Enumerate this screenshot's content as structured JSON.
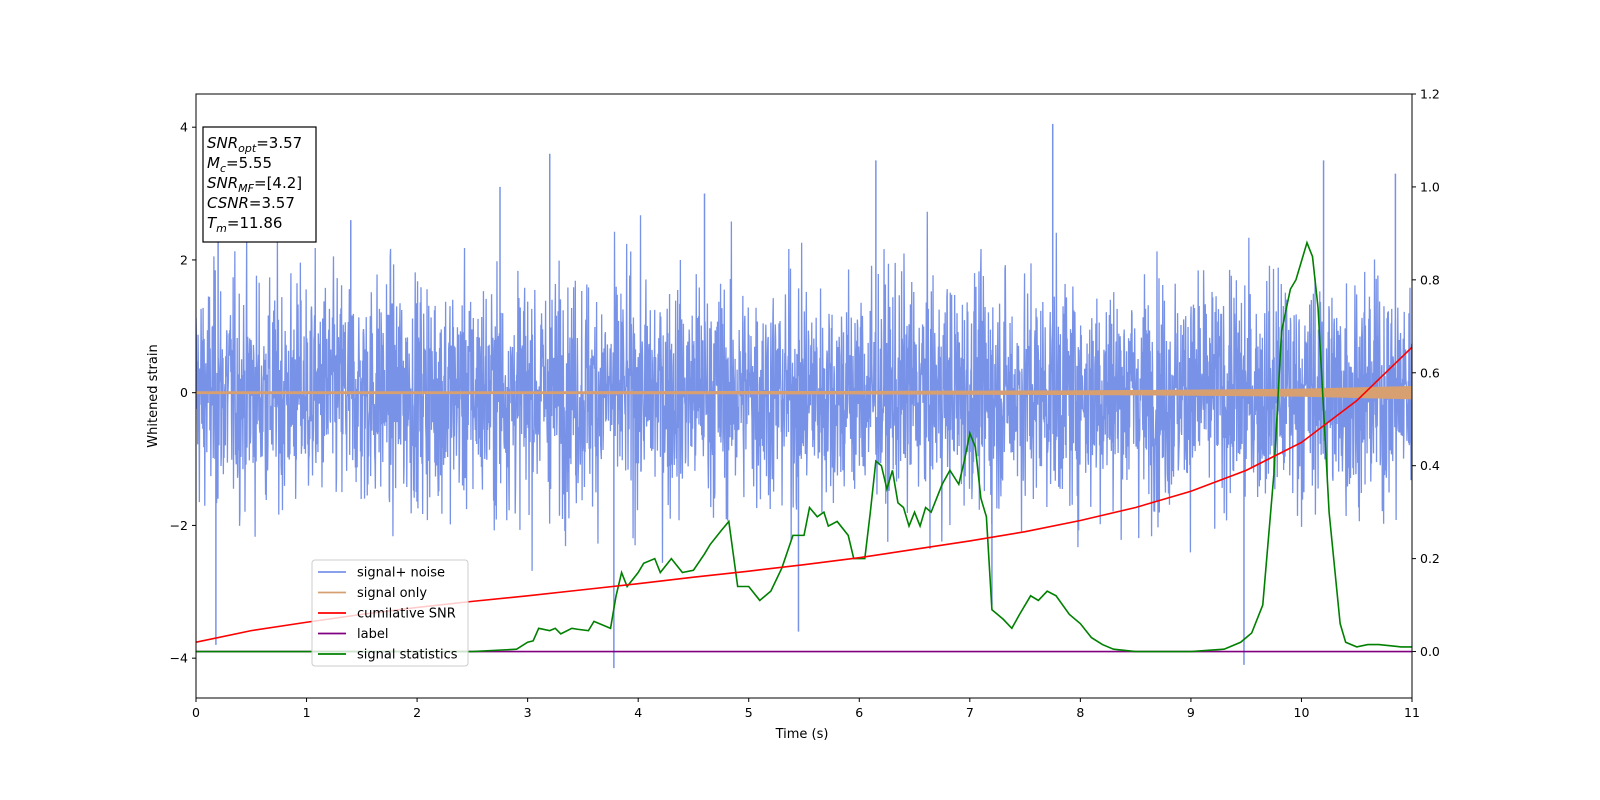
{
  "colors": {
    "noise": "#7892e8",
    "signal": "#d8a070",
    "cumulative": "#ff0000",
    "label": "#800080",
    "statistics": "#008000"
  },
  "chart_data": {
    "type": "line",
    "xlabel": "Time (s)",
    "ylabel": "Whitened strain",
    "xlim": [
      0,
      11
    ],
    "ylim": [
      -4.6,
      4.5
    ],
    "y2lim": [
      -0.1,
      1.2
    ],
    "xticks": [
      "0",
      "1",
      "2",
      "3",
      "4",
      "5",
      "6",
      "7",
      "8",
      "9",
      "10",
      "11"
    ],
    "yticks": [
      "4",
      "2",
      "0",
      "−2",
      "−4"
    ],
    "y2ticks": [
      "1.2",
      "1.0",
      "0.8",
      "0.6",
      "0.4",
      "0.2",
      "0.0"
    ],
    "grid": false,
    "legend_position": "lower-left",
    "annotation": {
      "snr_opt": {
        "base": "SNR",
        "sub": "opt",
        "value": "=3.57"
      },
      "mc": {
        "base": "M",
        "sub": "c",
        "value": "=5.55"
      },
      "snr_mf": {
        "base": "SNR",
        "sub": "MF",
        "value": "=[4.2]"
      },
      "csnr": {
        "base": "CSNR",
        "value": "=3.57"
      },
      "tm": {
        "base": "T",
        "sub": "m",
        "value": "=11.86"
      }
    },
    "series": [
      {
        "name": "signal+ noise",
        "axis": "left",
        "description_values": "dense Gaussian-like noise, amplitude mostly within [-2.5, 2.5], spikes to about 4 and -4.2",
        "notable_peaks": [
          [
            0.2,
            2.3
          ],
          [
            1.4,
            2.6
          ],
          [
            2.75,
            3.1
          ],
          [
            3.2,
            3.6
          ],
          [
            4.6,
            3.0
          ],
          [
            6.15,
            3.5
          ],
          [
            7.75,
            4.05
          ],
          [
            10.2,
            3.5
          ],
          [
            10.85,
            3.3
          ]
        ],
        "notable_troughs": [
          [
            0.18,
            -3.8
          ],
          [
            3.78,
            -4.15
          ],
          [
            5.45,
            -3.6
          ],
          [
            9.48,
            -4.1
          ],
          [
            7.2,
            -3.2
          ]
        ]
      },
      {
        "name": "signal only",
        "axis": "left",
        "x": [
          0,
          3,
          6,
          8,
          9,
          10,
          10.5,
          11
        ],
        "amplitude": [
          0.02,
          0.02,
          0.025,
          0.035,
          0.045,
          0.06,
          0.08,
          0.1
        ]
      },
      {
        "name": "cumilative SNR",
        "axis": "right",
        "x": [
          0,
          0.5,
          1,
          1.5,
          2,
          2.5,
          3,
          3.5,
          4,
          4.5,
          5,
          5.5,
          6,
          6.5,
          7,
          7.5,
          8,
          8.5,
          9,
          9.5,
          10,
          10.5,
          11
        ],
        "values": [
          0.02,
          0.045,
          0.063,
          0.08,
          0.095,
          0.108,
          0.12,
          0.133,
          0.146,
          0.16,
          0.173,
          0.187,
          0.202,
          0.22,
          0.238,
          0.258,
          0.282,
          0.31,
          0.345,
          0.39,
          0.45,
          0.54,
          0.655
        ]
      },
      {
        "name": "label",
        "axis": "right",
        "x": [
          0,
          11
        ],
        "values": [
          0.0,
          0.0
        ]
      },
      {
        "name": "signal statistics",
        "axis": "right",
        "x": [
          0,
          2.5,
          2.9,
          3.0,
          3.05,
          3.1,
          3.2,
          3.25,
          3.3,
          3.4,
          3.45,
          3.55,
          3.6,
          3.7,
          3.75,
          3.8,
          3.85,
          3.9,
          4.0,
          4.05,
          4.15,
          4.2,
          4.3,
          4.4,
          4.5,
          4.6,
          4.65,
          4.75,
          4.82,
          4.9,
          5.0,
          5.1,
          5.2,
          5.3,
          5.4,
          5.5,
          5.55,
          5.62,
          5.68,
          5.72,
          5.8,
          5.9,
          5.95,
          6.05,
          6.1,
          6.15,
          6.2,
          6.25,
          6.3,
          6.35,
          6.4,
          6.45,
          6.5,
          6.55,
          6.6,
          6.65,
          6.75,
          6.82,
          6.9,
          6.95,
          7.0,
          7.05,
          7.1,
          7.15,
          7.2,
          7.3,
          7.38,
          7.45,
          7.55,
          7.62,
          7.7,
          7.78,
          7.9,
          8.0,
          8.1,
          8.2,
          8.3,
          8.5,
          9.0,
          9.3,
          9.45,
          9.55,
          9.65,
          9.75,
          9.82,
          9.9,
          9.95,
          10.05,
          10.1,
          10.15,
          10.25,
          10.35,
          10.4,
          10.5,
          10.6,
          10.7,
          10.9,
          11.0
        ],
        "values": [
          0.0,
          0.0,
          0.005,
          0.02,
          0.023,
          0.05,
          0.045,
          0.05,
          0.038,
          0.05,
          0.048,
          0.045,
          0.065,
          0.055,
          0.05,
          0.12,
          0.17,
          0.14,
          0.17,
          0.19,
          0.2,
          0.17,
          0.2,
          0.17,
          0.175,
          0.21,
          0.23,
          0.26,
          0.28,
          0.14,
          0.14,
          0.11,
          0.13,
          0.18,
          0.25,
          0.25,
          0.31,
          0.29,
          0.3,
          0.27,
          0.28,
          0.25,
          0.2,
          0.2,
          0.3,
          0.41,
          0.4,
          0.35,
          0.39,
          0.32,
          0.31,
          0.27,
          0.3,
          0.27,
          0.31,
          0.3,
          0.36,
          0.39,
          0.36,
          0.41,
          0.47,
          0.44,
          0.33,
          0.29,
          0.09,
          0.07,
          0.05,
          0.08,
          0.12,
          0.11,
          0.13,
          0.12,
          0.08,
          0.06,
          0.03,
          0.015,
          0.005,
          0.0,
          0.0,
          0.005,
          0.02,
          0.04,
          0.1,
          0.38,
          0.69,
          0.78,
          0.8,
          0.88,
          0.85,
          0.74,
          0.3,
          0.06,
          0.02,
          0.01,
          0.015,
          0.015,
          0.01,
          0.01
        ]
      }
    ]
  }
}
